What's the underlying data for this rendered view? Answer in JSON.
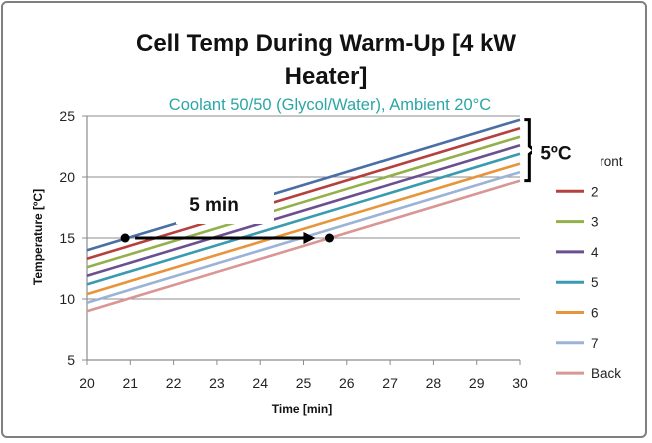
{
  "chart_data": {
    "type": "line",
    "title_lines": [
      "Cell Temp During Warm-Up [4 kW",
      "Heater]"
    ],
    "subtitle": "Coolant 50/50 (Glycol/Water), Ambient 20°C",
    "xlabel": "Time [min]",
    "ylabel": "Temperature [ºC]",
    "xlim": [
      20,
      30
    ],
    "ylim": [
      5,
      25
    ],
    "x_ticks": [
      20,
      21,
      22,
      23,
      24,
      25,
      26,
      27,
      28,
      29,
      30
    ],
    "y_ticks": [
      5,
      10,
      15,
      20,
      25
    ],
    "grid": "horizontal",
    "legend_position": "right",
    "series": [
      {
        "name": "Front",
        "color": "#4a6fa5",
        "x": [
          20,
          30
        ],
        "values": [
          14.0,
          24.7
        ]
      },
      {
        "name": "2",
        "color": "#b5413e",
        "x": [
          20,
          30
        ],
        "values": [
          13.3,
          24.0
        ]
      },
      {
        "name": "3",
        "color": "#93b04a",
        "x": [
          20,
          30
        ],
        "values": [
          12.6,
          23.3
        ]
      },
      {
        "name": "4",
        "color": "#6a5090",
        "x": [
          20,
          30
        ],
        "values": [
          11.9,
          22.6
        ]
      },
      {
        "name": "5",
        "color": "#3a9bb0",
        "x": [
          20,
          30
        ],
        "values": [
          11.2,
          21.9
        ]
      },
      {
        "name": "6",
        "color": "#e8943a",
        "x": [
          20,
          30
        ],
        "values": [
          10.4,
          21.1
        ]
      },
      {
        "name": "7",
        "color": "#9cb3d8",
        "x": [
          20,
          30
        ],
        "values": [
          9.7,
          20.4
        ]
      },
      {
        "name": "Back",
        "color": "#d99695",
        "x": [
          20,
          30
        ],
        "values": [
          9.0,
          19.7
        ]
      }
    ],
    "annotations": {
      "time_arrow": {
        "label": "5 min",
        "x_start": 20.88,
        "x_end": 25.6,
        "y": 15
      },
      "temp_bracket": {
        "label": "5ºC",
        "x": 30.1,
        "y_min": 19.7,
        "y_max": 24.7
      }
    }
  }
}
